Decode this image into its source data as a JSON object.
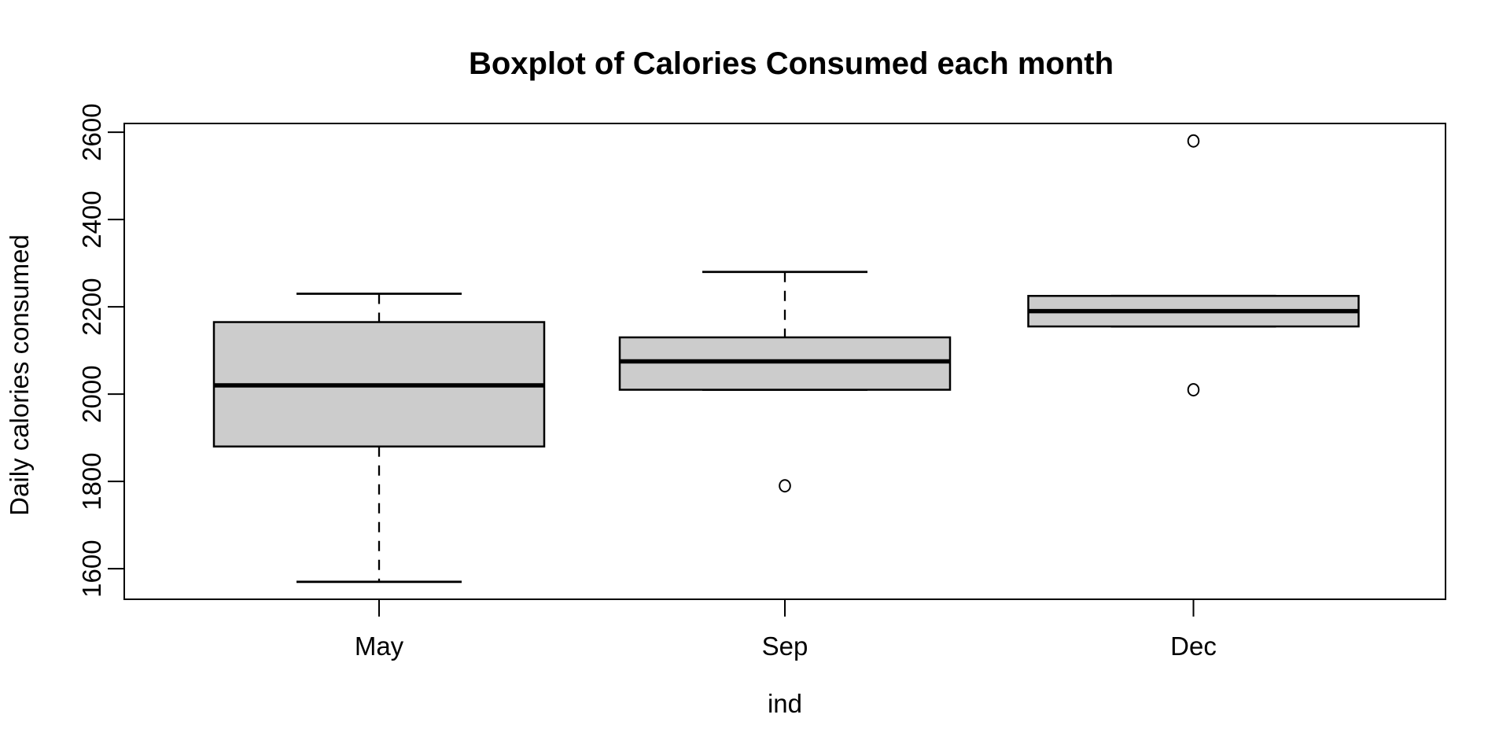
{
  "chart_data": {
    "type": "boxplot",
    "title": "Boxplot of Calories Consumed each month",
    "xlabel": "ind",
    "ylabel": "Daily calories consumed",
    "categories": [
      "May",
      "Sep",
      "Dec"
    ],
    "boxes": [
      {
        "label": "May",
        "whisker_low": 1570,
        "q1": 1880,
        "median": 2020,
        "q3": 2165,
        "whisker_high": 2230,
        "outliers": []
      },
      {
        "label": "Sep",
        "whisker_low": 2010,
        "q1": 2010,
        "median": 2075,
        "q3": 2130,
        "whisker_high": 2280,
        "outliers": [
          1790
        ]
      },
      {
        "label": "Dec",
        "whisker_low": 2155,
        "q1": 2155,
        "median": 2190,
        "q3": 2225,
        "whisker_high": 2225,
        "outliers": [
          2580,
          2010
        ]
      }
    ],
    "y_ticks": [
      1600,
      1800,
      2000,
      2200,
      2400,
      2600
    ],
    "ylim": [
      1530,
      2620
    ],
    "grid": false,
    "legend": "none",
    "colors": {
      "box_fill": "#CCCCCC",
      "stroke": "#000000",
      "background": "#FFFFFF"
    }
  }
}
